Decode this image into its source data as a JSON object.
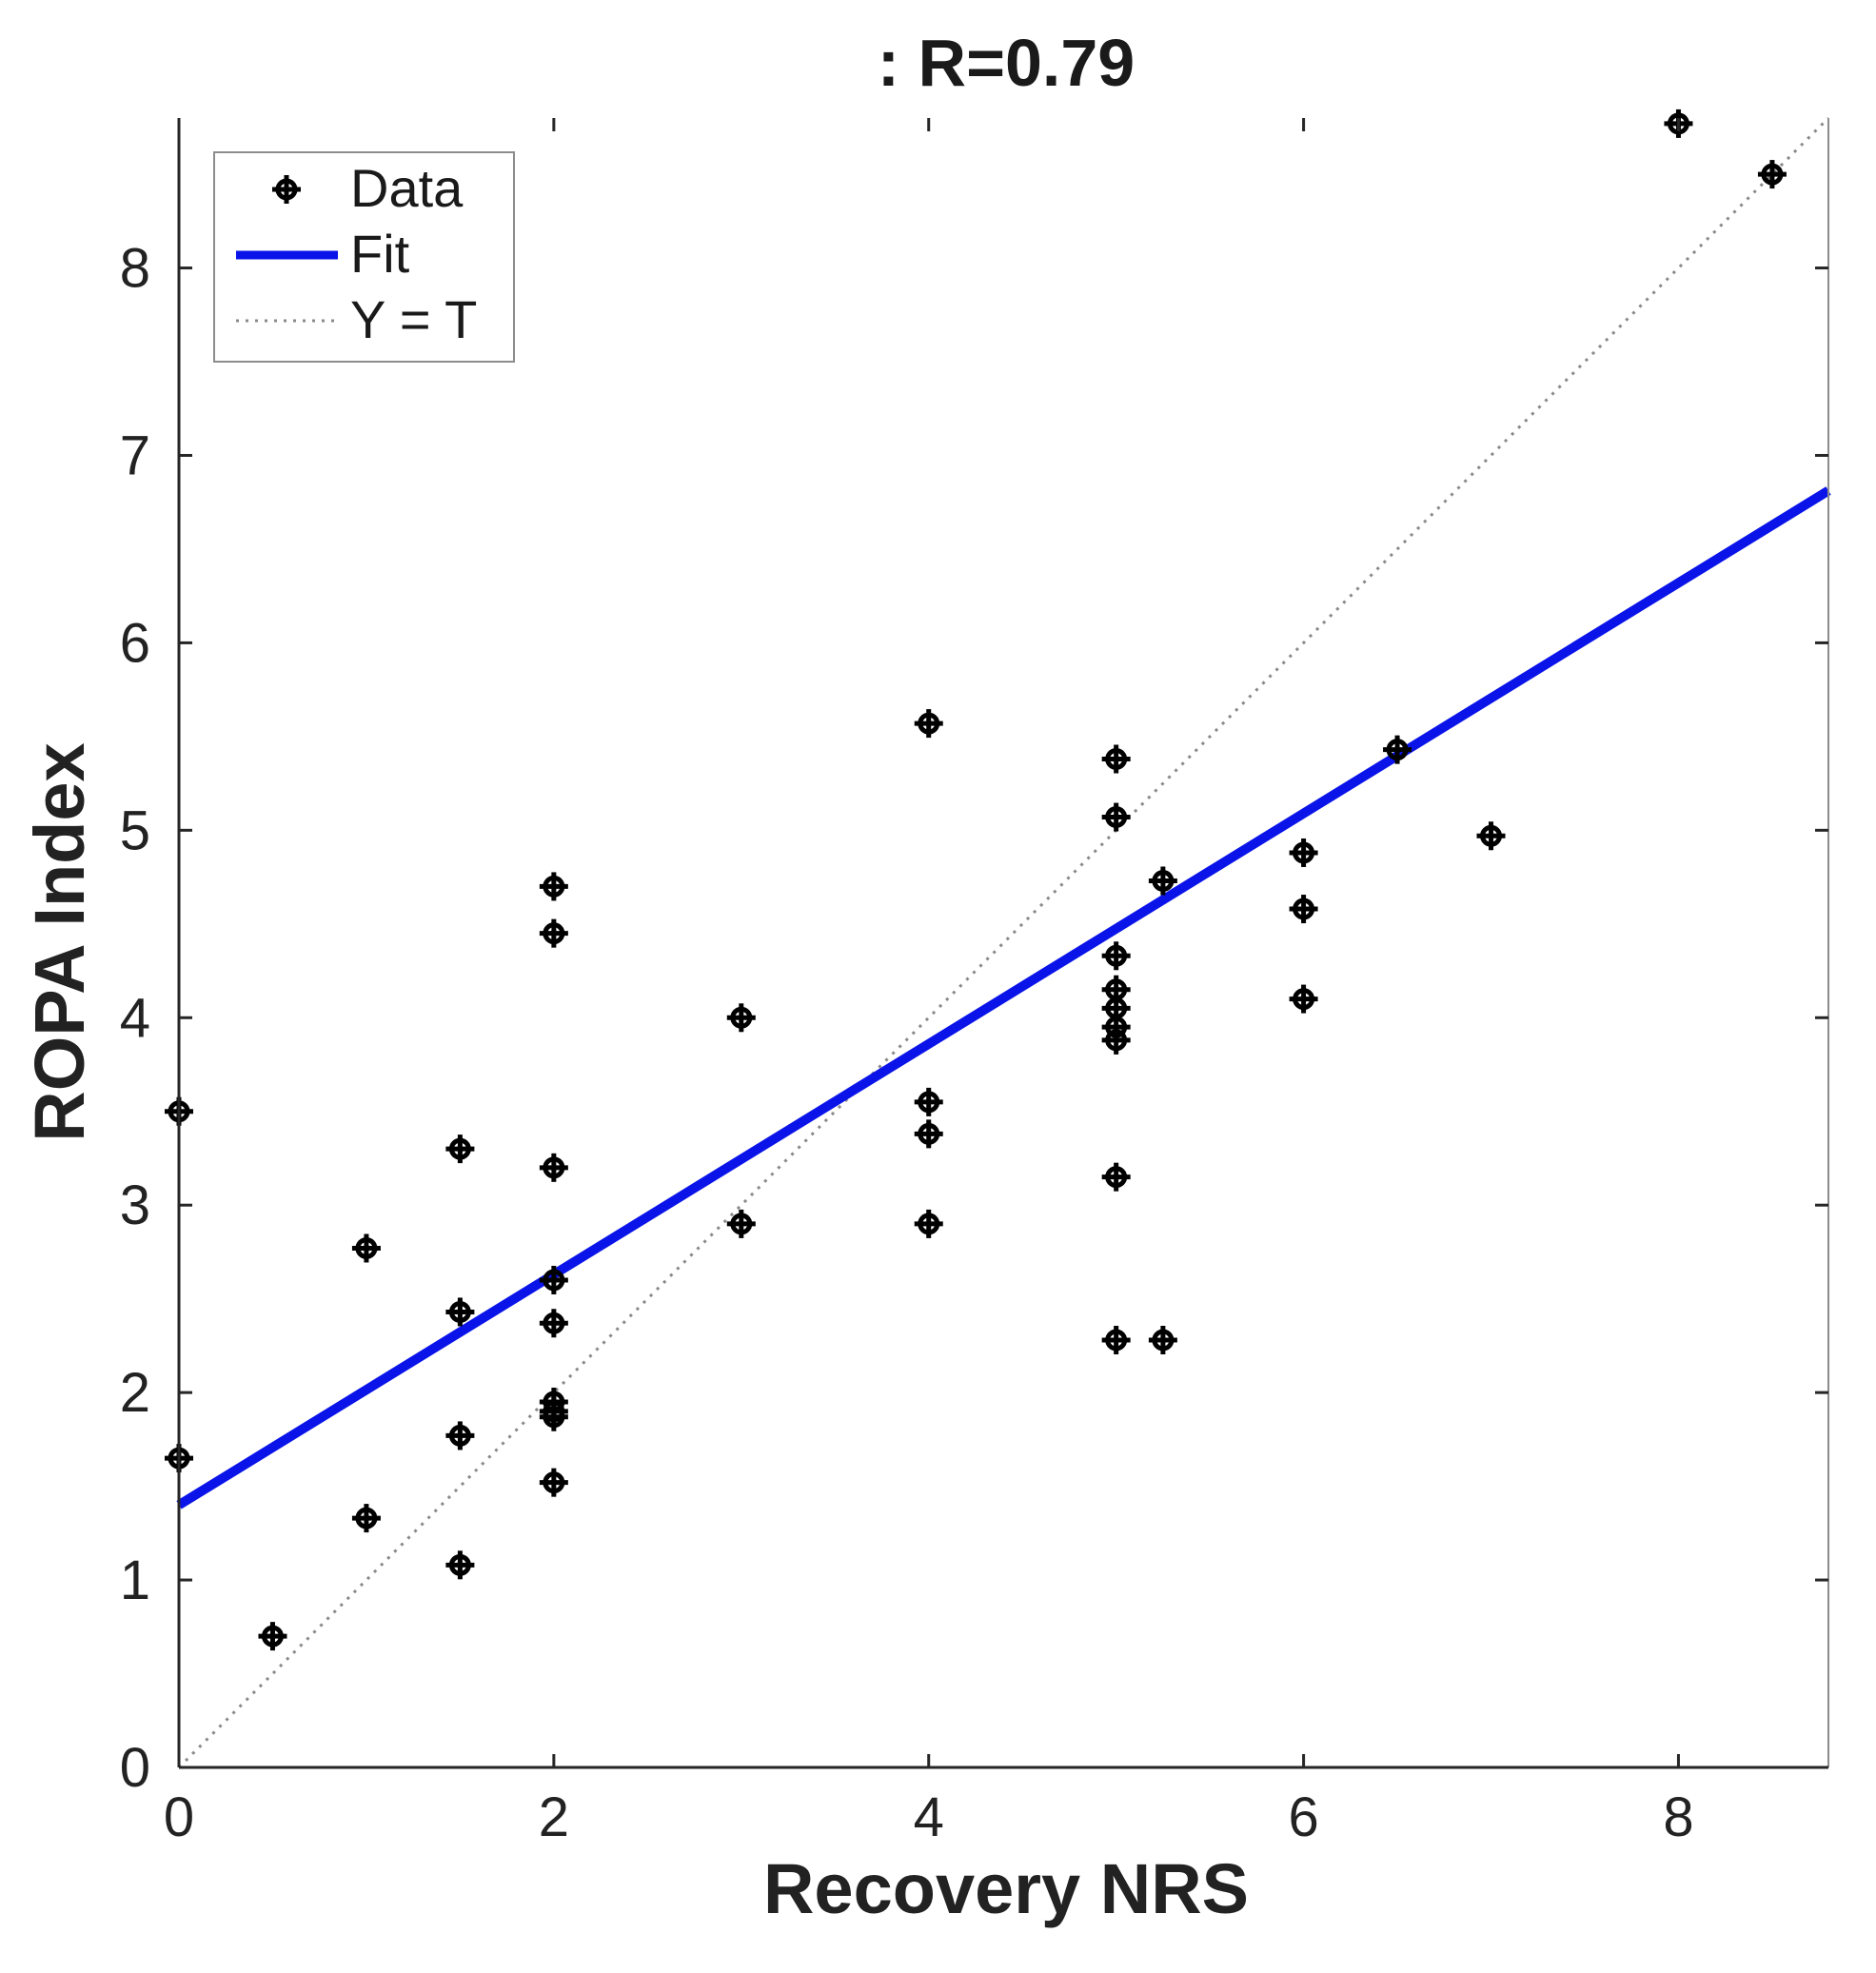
{
  "chart_data": {
    "type": "scatter",
    "title": ": R=0.79",
    "xlabel": "Recovery NRS",
    "ylabel": "ROPA Index",
    "xlim": [
      0,
      8.8
    ],
    "ylim": [
      0,
      8.8
    ],
    "xticks": [
      0,
      2,
      4,
      6,
      8
    ],
    "xtick_labels": [
      "0",
      "2",
      "4",
      "6",
      "8"
    ],
    "yticks": [
      0,
      1,
      2,
      3,
      4,
      5,
      6,
      7,
      8
    ],
    "ytick_labels": [
      "0",
      "1",
      "2",
      "3",
      "4",
      "5",
      "6",
      "7",
      "8"
    ],
    "grid": false,
    "legend_position": "top-left",
    "legend": {
      "data_label": "Data",
      "fit_label": "Fit",
      "identity_label": "Y = T"
    },
    "series": [
      {
        "name": "Data",
        "kind": "points",
        "marker": "plus-circle",
        "color": "#000000",
        "x": [
          0,
          0,
          0.5,
          1,
          1,
          1.5,
          1.5,
          1.5,
          1.5,
          2,
          2,
          2,
          2,
          2,
          2,
          2,
          2,
          2,
          3,
          3,
          4,
          4,
          4,
          4,
          5,
          5,
          5,
          5,
          5,
          5,
          5,
          5,
          5,
          5.25,
          5.25,
          6,
          6,
          6,
          6.5,
          7,
          8,
          8.5
        ],
        "y": [
          3.5,
          1.65,
          0.7,
          2.77,
          1.33,
          3.3,
          2.43,
          1.77,
          1.08,
          4.7,
          4.45,
          3.2,
          2.6,
          2.37,
          1.95,
          1.9,
          1.87,
          1.52,
          4.0,
          2.9,
          5.57,
          3.55,
          3.38,
          2.9,
          5.38,
          5.07,
          4.33,
          4.15,
          4.05,
          3.95,
          3.88,
          3.15,
          2.28,
          4.73,
          2.28,
          4.88,
          4.58,
          4.1,
          5.43,
          4.97,
          8.77,
          8.5
        ]
      },
      {
        "name": "Fit",
        "kind": "line",
        "color": "#0a14e8",
        "intercept": 1.4,
        "slope": 0.615
      },
      {
        "name": "Y = T",
        "kind": "identity",
        "color": "#8a8a8a"
      }
    ]
  }
}
